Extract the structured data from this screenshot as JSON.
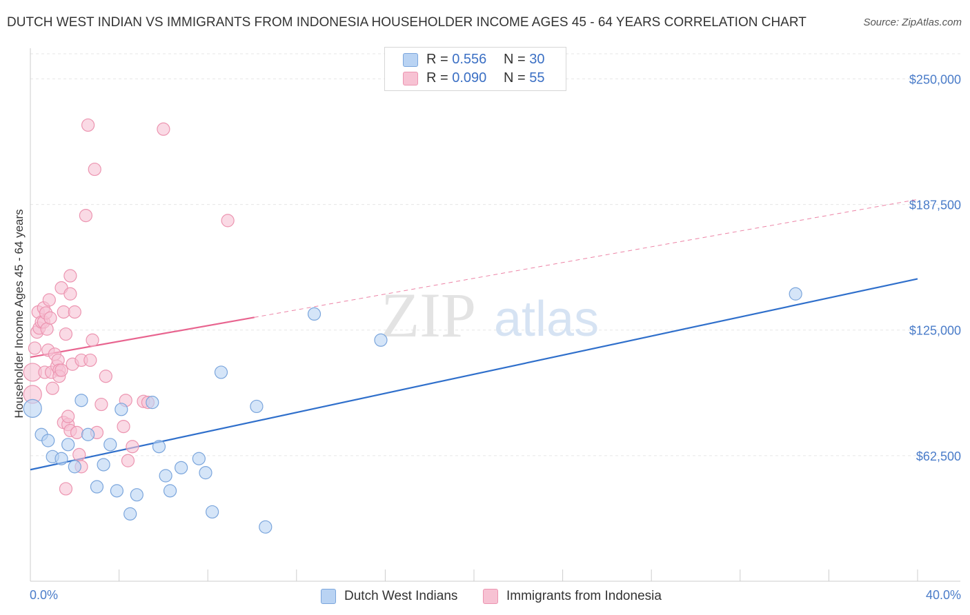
{
  "title": "DUTCH WEST INDIAN VS IMMIGRANTS FROM INDONESIA HOUSEHOLDER INCOME AGES 45 - 64 YEARS CORRELATION CHART",
  "source": "Source: ZipAtlas.com",
  "watermark": {
    "zip": "ZIP",
    "atlas": "atlas"
  },
  "legend": {
    "series": [
      {
        "r_label": "R =",
        "r_value": "0.556",
        "n_label": "N =",
        "n_value": "30"
      },
      {
        "r_label": "R =",
        "r_value": "0.090",
        "n_label": "N =",
        "n_value": "55"
      }
    ]
  },
  "colors": {
    "blue_fill": "#b9d3f3",
    "blue_stroke": "#7aa5dc",
    "blue_line": "#2f6fcb",
    "pink_fill": "#f7c2d3",
    "pink_stroke": "#ec94b0",
    "pink_line": "#e8648f",
    "tick_text": "#4a7cc9",
    "grid": "#e6e6e6"
  },
  "chart_data": {
    "type": "scatter",
    "title": "DUTCH WEST INDIAN VS IMMIGRANTS FROM INDONESIA HOUSEHOLDER INCOME AGES 45 - 64 YEARS CORRELATION CHART",
    "xlabel": "",
    "ylabel": "Householder Income Ages 45 - 64 years",
    "xlim": [
      0,
      40
    ],
    "ylim": [
      0,
      262500
    ],
    "x_tick_labels": [
      "0.0%",
      "40.0%"
    ],
    "y_ticks": [
      62500,
      125000,
      187500,
      250000
    ],
    "y_tick_labels": [
      "$62,500",
      "$125,000",
      "$187,500",
      "$250,000"
    ],
    "legend_position": "top-center",
    "series": [
      {
        "name": "Dutch West Indians",
        "R": 0.556,
        "N": 30,
        "trend": {
          "x0": 0,
          "y0": 55500,
          "x1": 40,
          "y1": 150500,
          "dashed_extension": false
        },
        "points": [
          [
            0.1,
            86000
          ],
          [
            0.5,
            73000
          ],
          [
            0.8,
            70000
          ],
          [
            1.0,
            62000
          ],
          [
            1.4,
            61000
          ],
          [
            1.7,
            68000
          ],
          [
            2.0,
            57000
          ],
          [
            2.3,
            90000
          ],
          [
            2.6,
            73000
          ],
          [
            3.0,
            47000
          ],
          [
            3.3,
            58000
          ],
          [
            3.6,
            68000
          ],
          [
            3.9,
            45000
          ],
          [
            4.1,
            85500
          ],
          [
            4.5,
            33500
          ],
          [
            4.8,
            43000
          ],
          [
            5.5,
            89000
          ],
          [
            5.8,
            67000
          ],
          [
            6.1,
            52500
          ],
          [
            6.3,
            45000
          ],
          [
            6.8,
            56500
          ],
          [
            7.6,
            61000
          ],
          [
            7.9,
            54000
          ],
          [
            8.2,
            34500
          ],
          [
            8.6,
            104000
          ],
          [
            10.2,
            87000
          ],
          [
            10.6,
            27000
          ],
          [
            12.8,
            133000
          ],
          [
            15.8,
            120000
          ],
          [
            34.5,
            143000
          ]
        ]
      },
      {
        "name": "Immigrants from Indonesia",
        "R": 0.09,
        "N": 55,
        "trend": {
          "x0": 0,
          "y0": 111500,
          "x1": 40,
          "y1": 190000,
          "solid_until_x": 10.1
        },
        "points": [
          [
            0.1,
            104000
          ],
          [
            0.1,
            93000
          ],
          [
            0.2,
            116000
          ],
          [
            0.3,
            124000
          ],
          [
            0.35,
            134000
          ],
          [
            0.4,
            126000
          ],
          [
            0.5,
            129000
          ],
          [
            0.6,
            129000
          ],
          [
            0.6,
            136000
          ],
          [
            0.65,
            104000
          ],
          [
            0.7,
            133500
          ],
          [
            0.75,
            125500
          ],
          [
            0.8,
            115000
          ],
          [
            0.85,
            140000
          ],
          [
            0.9,
            131000
          ],
          [
            0.95,
            104000
          ],
          [
            1.0,
            96000
          ],
          [
            1.1,
            113000
          ],
          [
            1.2,
            107000
          ],
          [
            1.25,
            110000
          ],
          [
            1.3,
            105000
          ],
          [
            1.3,
            102000
          ],
          [
            1.4,
            105000
          ],
          [
            1.4,
            146000
          ],
          [
            1.5,
            79000
          ],
          [
            1.5,
            134000
          ],
          [
            1.6,
            123000
          ],
          [
            1.7,
            78000
          ],
          [
            1.7,
            82000
          ],
          [
            1.8,
            75000
          ],
          [
            1.8,
            152000
          ],
          [
            1.8,
            143000
          ],
          [
            1.9,
            108000
          ],
          [
            2.0,
            134000
          ],
          [
            2.1,
            74000
          ],
          [
            2.2,
            63000
          ],
          [
            2.3,
            57000
          ],
          [
            2.3,
            110000
          ],
          [
            2.5,
            182000
          ],
          [
            2.6,
            227000
          ],
          [
            2.7,
            110000
          ],
          [
            2.8,
            120000
          ],
          [
            2.9,
            205000
          ],
          [
            3.0,
            74000
          ],
          [
            3.2,
            88000
          ],
          [
            3.4,
            102000
          ],
          [
            4.2,
            77000
          ],
          [
            4.3,
            90000
          ],
          [
            4.4,
            60000
          ],
          [
            4.6,
            67000
          ],
          [
            5.1,
            89500
          ],
          [
            5.3,
            89000
          ],
          [
            6.0,
            225000
          ],
          [
            8.9,
            179500
          ],
          [
            1.6,
            46000
          ]
        ]
      }
    ]
  }
}
